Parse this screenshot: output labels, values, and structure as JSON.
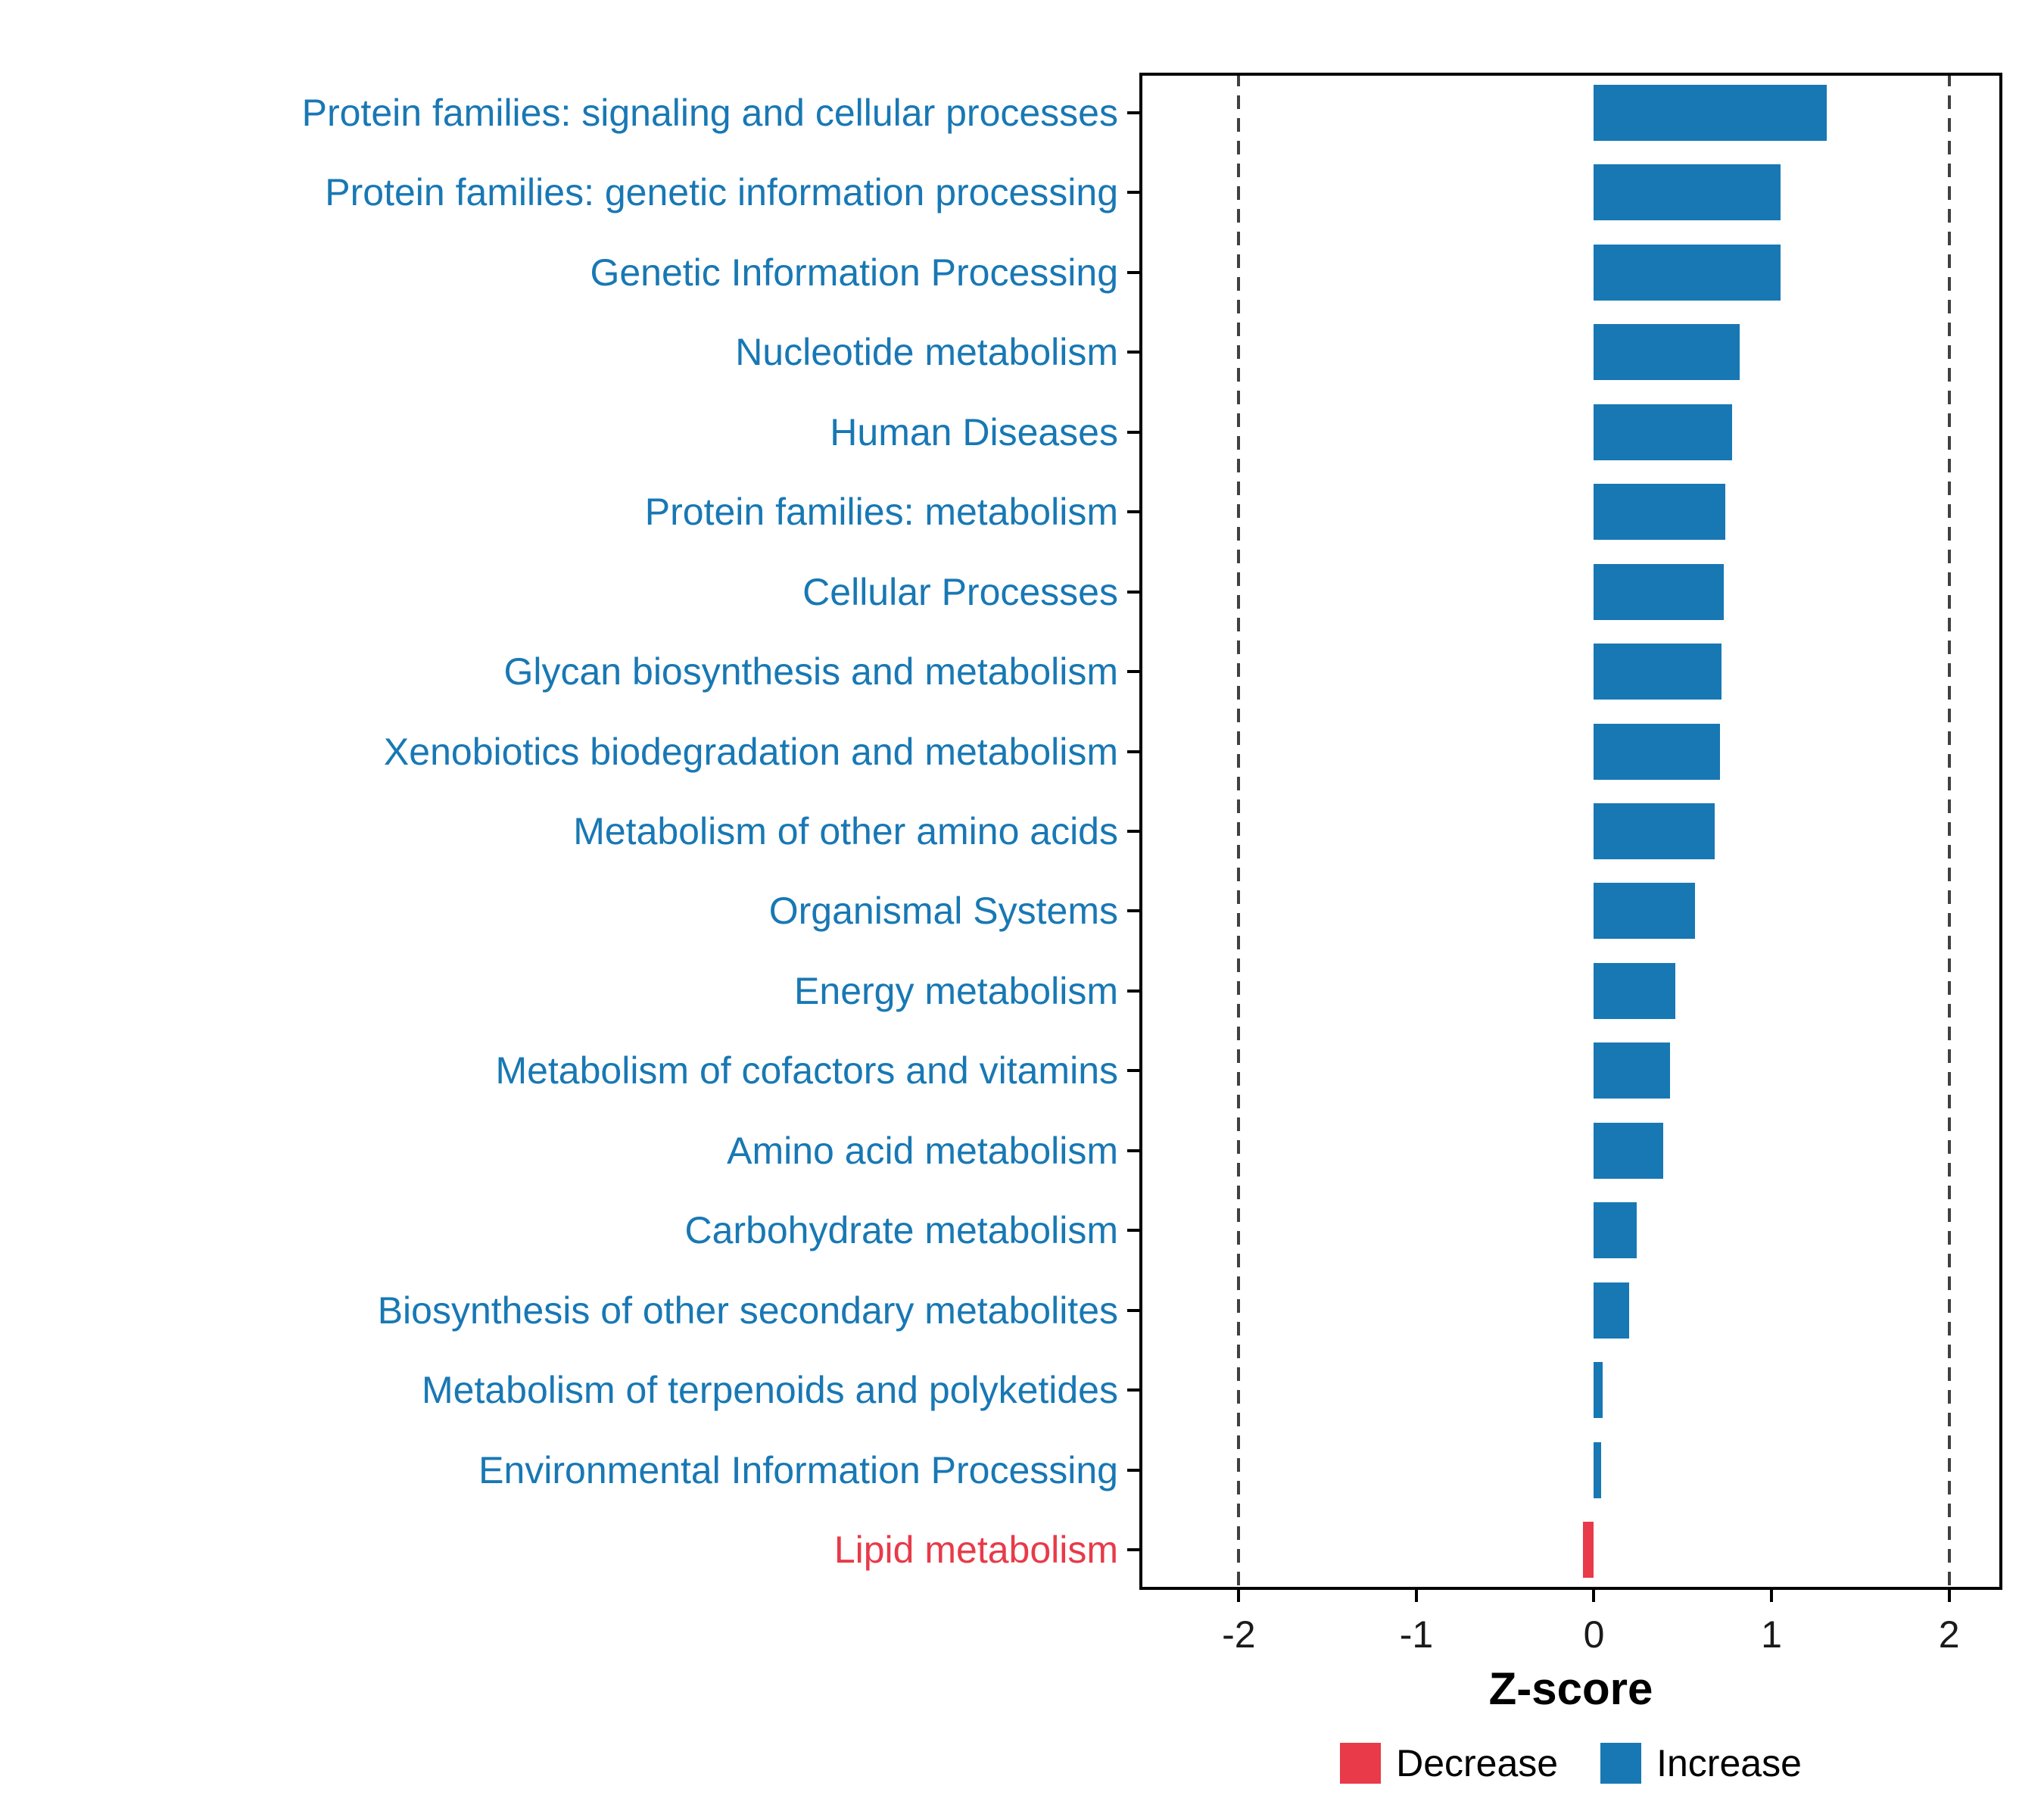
{
  "chart_data": {
    "type": "bar",
    "orientation": "horizontal",
    "title": "",
    "xlabel": "Z-score",
    "ylabel": "",
    "xlim": [
      -2.56,
      2.3
    ],
    "xticks": [
      -2,
      -1,
      0,
      1,
      2
    ],
    "reference_lines": [
      -2,
      2
    ],
    "grid": false,
    "legend_position": "bottom",
    "categories": [
      "Protein families: signaling and cellular processes",
      "Protein families: genetic information processing",
      "Genetic Information Processing",
      "Nucleotide metabolism",
      "Human Diseases",
      "Protein families: metabolism",
      "Cellular Processes",
      "Glycan biosynthesis and metabolism",
      "Xenobiotics biodegradation and metabolism",
      "Metabolism of other amino acids",
      "Organismal Systems",
      "Energy metabolism",
      "Metabolism of cofactors and vitamins",
      "Amino acid metabolism",
      "Carbohydrate metabolism",
      "Biosynthesis of other secondary metabolites",
      "Metabolism of terpenoids and polyketides",
      "Environmental Information Processing",
      "Lipid metabolism"
    ],
    "values": [
      1.31,
      1.05,
      1.05,
      0.82,
      0.78,
      0.74,
      0.73,
      0.72,
      0.71,
      0.68,
      0.57,
      0.46,
      0.43,
      0.39,
      0.24,
      0.2,
      0.05,
      0.04,
      -0.06
    ],
    "directions": [
      "increase",
      "increase",
      "increase",
      "increase",
      "increase",
      "increase",
      "increase",
      "increase",
      "increase",
      "increase",
      "increase",
      "increase",
      "increase",
      "increase",
      "increase",
      "increase",
      "increase",
      "increase",
      "decrease"
    ],
    "colors": {
      "increase": "#1878B4",
      "decrease": "#E83A49"
    },
    "legend": [
      {
        "label": "Decrease",
        "color_key": "decrease"
      },
      {
        "label": "Increase",
        "color_key": "increase"
      }
    ]
  }
}
